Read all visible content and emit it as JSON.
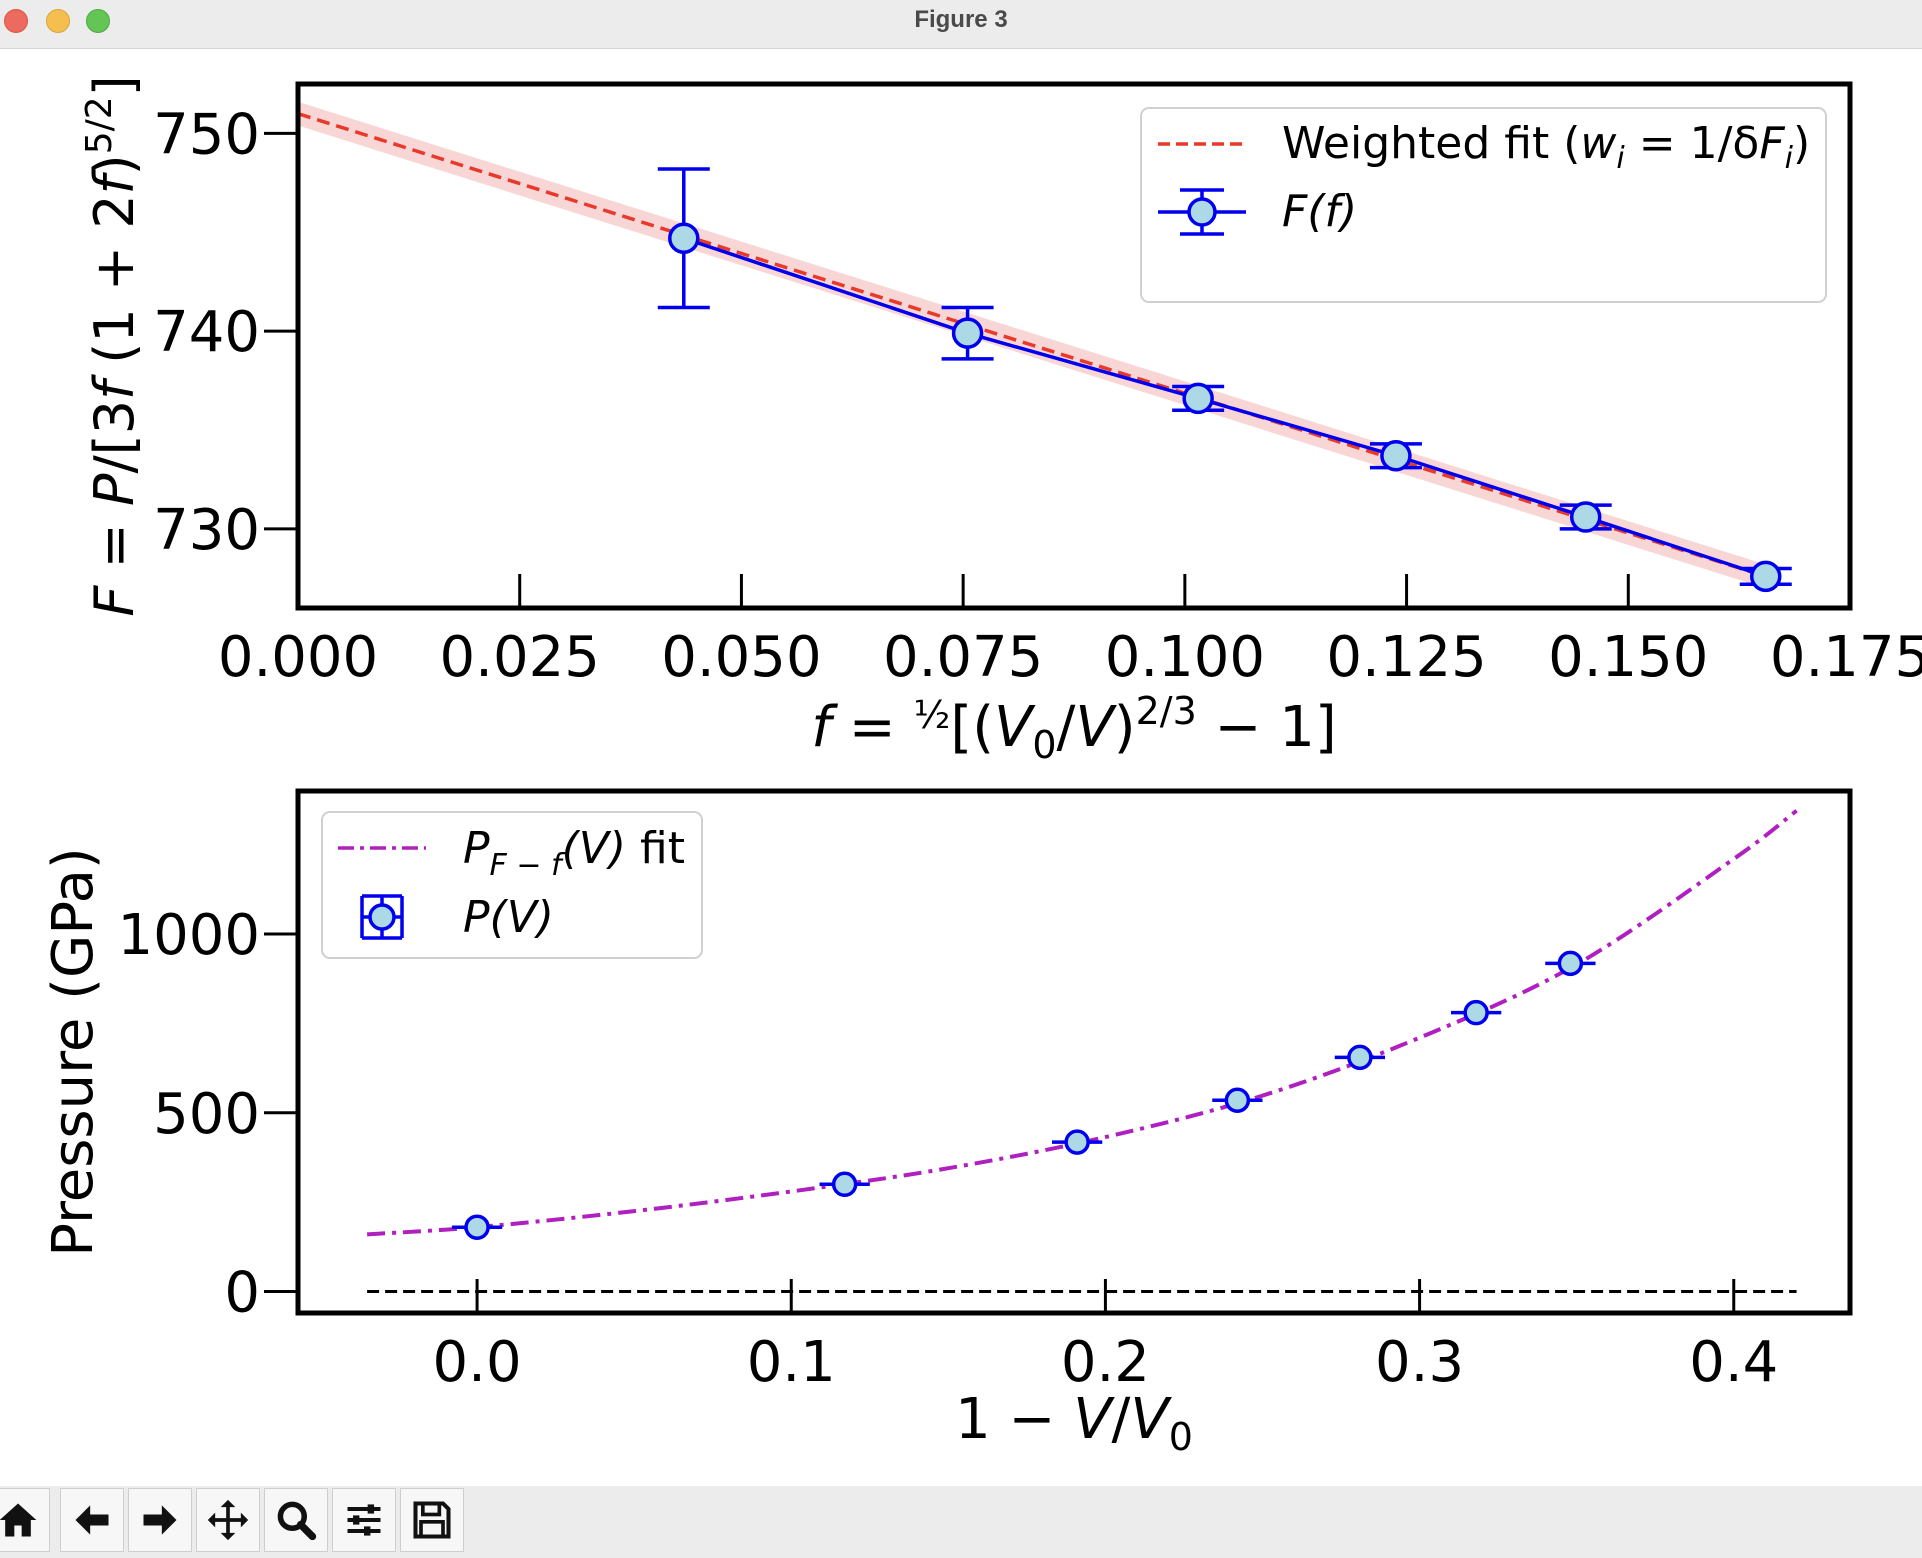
{
  "window": {
    "title": "Figure 3"
  },
  "toolbar": {
    "buttons": [
      "home-icon",
      "back-arrow-icon",
      "forward-arrow-icon",
      "pan-move-icon",
      "zoom-magnifier-icon",
      "configure-subplots-icon",
      "save-floppy-icon"
    ]
  },
  "colors": {
    "blue": "#0000ee",
    "marker_fill": "#add8e6",
    "red": "#e8392a",
    "band": "#f6c4c4",
    "purple": "#b01fbf",
    "black": "#000000"
  },
  "chart_data": [
    {
      "type": "line",
      "title": "",
      "xlabel": "f = ½[(V0/V)^2/3 − 1]",
      "ylabel": "F = P/[3f(1 + 2f)^5/2]",
      "xlim": [
        0.0,
        0.175
      ],
      "ylim": [
        726,
        752.5
      ],
      "xticks": [
        "0.000",
        "0.025",
        "0.050",
        "0.075",
        "0.100",
        "0.125",
        "0.150",
        "0.175"
      ],
      "yticks": [
        "730",
        "740",
        "750"
      ],
      "legend_position": "top-right",
      "series": [
        {
          "name": "F(f)",
          "legend_label": "F(f)",
          "style": "solid line with errorbars",
          "x": [
            0.0435,
            0.0755,
            0.1015,
            0.1238,
            0.1452,
            0.1655
          ],
          "y": [
            744.7,
            739.9,
            736.6,
            733.7,
            730.6,
            727.6
          ],
          "yerr": [
            3.5,
            1.3,
            0.6,
            0.6,
            0.6,
            0.4
          ]
        },
        {
          "name": "Weighted fit",
          "legend_label": "Weighted fit (wi = 1/δFi)",
          "style": "dashed red line with shaded confidence band",
          "x": [
            0.0,
            0.1655
          ],
          "y": [
            751.0,
            727.6
          ],
          "band_halfwidth": 0.6
        }
      ]
    },
    {
      "type": "line",
      "title": "",
      "xlabel": "1 − V/V0",
      "ylabel": "Pressure (GPa)",
      "xlim": [
        -0.057,
        0.437
      ],
      "ylim": [
        -60,
        1400
      ],
      "xticks": [
        "0.0",
        "0.1",
        "0.2",
        "0.3",
        "0.4"
      ],
      "yticks": [
        "0",
        "500",
        "1000"
      ],
      "legend_position": "top-left",
      "series": [
        {
          "name": "P(V)",
          "legend_label": "P(V)",
          "style": "markers with errorbars",
          "x": [
            0.0,
            0.117,
            0.191,
            0.242,
            0.281,
            0.318,
            0.348
          ],
          "y": [
            180,
            300,
            418,
            535,
            655,
            780,
            918
          ],
          "yerr": [
            30,
            30,
            30,
            30,
            30,
            30,
            30
          ],
          "xerr": [
            0.008,
            0.008,
            0.008,
            0.008,
            0.008,
            0.008,
            0.008
          ]
        },
        {
          "name": "PF-f(V) fit",
          "legend_label": "PF−f(V) fit",
          "style": "dash-dot purple line",
          "x": [
            -0.035,
            0.0,
            0.05,
            0.1,
            0.15,
            0.2,
            0.25,
            0.3,
            0.35,
            0.4,
            0.42
          ],
          "y": [
            160,
            180,
            225,
            280,
            345,
            432,
            548,
            710,
            915,
            1210,
            1345
          ]
        },
        {
          "name": "zero line",
          "legend_label": "",
          "style": "dashed black horizontal line",
          "x": [
            -0.035,
            0.42
          ],
          "y": [
            0,
            0
          ]
        }
      ]
    }
  ]
}
